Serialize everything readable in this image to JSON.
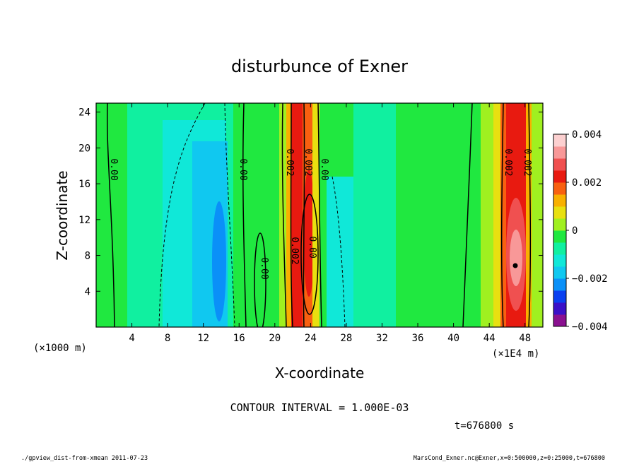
{
  "chart_data": {
    "type": "heatmap",
    "title": "disturbunce of Exner",
    "xlabel": "X-coordinate",
    "ylabel": "Z-coordinate",
    "x_unit_left": "(×1000 m)",
    "x_unit_right": "(×1E4 m)",
    "x_ticks": [
      "4",
      "8",
      "12",
      "16",
      "20",
      "24",
      "28",
      "32",
      "36",
      "40",
      "44",
      "48"
    ],
    "y_ticks": [
      "4",
      "8",
      "12",
      "16",
      "20",
      "24"
    ],
    "xlim": [
      0,
      50
    ],
    "ylim": [
      0,
      25
    ],
    "colorbar": {
      "range": [
        -0.004,
        0.004
      ],
      "tick_labels": [
        "0.004",
        "0.002",
        "0",
        "−0.002",
        "−0.004"
      ],
      "colors": [
        "#8a1090",
        "#3a10c8",
        "#0a40f0",
        "#0a90f8",
        "#10c8f0",
        "#10e8d8",
        "#10f0a0",
        "#20e840",
        "#a0f020",
        "#e8e010",
        "#f8b000",
        "#f86010",
        "#e81a10",
        "#f05050",
        "#f89898",
        "#fcd0d0"
      ]
    },
    "contour_labels": [
      "0.00",
      "0.00",
      "0.002",
      "0.002",
      "0.00",
      "0.002",
      "0.00",
      "0.00",
      "0.002",
      "0.002"
    ],
    "contour_interval": "CONTOUR INTERVAL = 1.000E-03",
    "time_label": "t=676800 s",
    "footer_left": "./gpview_dist-from-xmean  2011-07-23",
    "footer_right": "MarsCond_Exner.nc@Exner,x=0:500000,z=0:25000,t=676800"
  }
}
